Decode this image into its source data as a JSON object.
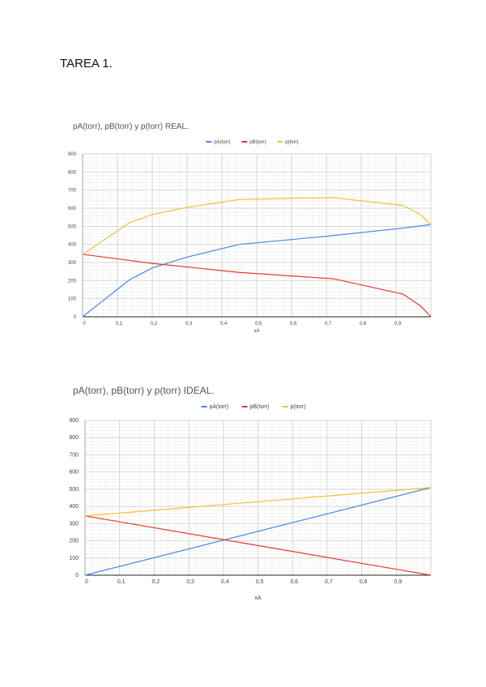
{
  "page": {
    "title": "TAREA 1."
  },
  "colors": {
    "pA": "#4a86e8",
    "pB": "#e53935",
    "p": "#f1c232",
    "grid_major": "#c8c8c8",
    "grid_minor": "#eeeeee",
    "axis": "#222222"
  },
  "chart_data": [
    {
      "type": "line",
      "title": "pA(torr), pB(torr) y p(torr) REAL.",
      "xlabel": "xA",
      "ylabel": "",
      "xlim": [
        0,
        1
      ],
      "ylim": [
        0,
        900
      ],
      "x_ticks": [
        "0",
        "0,1",
        "0,2",
        "0,3",
        "0,4",
        "0,5",
        "0,6",
        "0,7",
        "0,8",
        "0,9"
      ],
      "y_ticks": [
        "0",
        "100",
        "200",
        "300",
        "400",
        "500",
        "600",
        "700",
        "800",
        "900"
      ],
      "legend": "top-center",
      "grid": true,
      "series": [
        {
          "name": "pA(torr)",
          "color": "#4a86e8",
          "x": [
            0,
            0.135,
            0.2,
            0.3,
            0.45,
            0.7,
            0.92,
            1.0
          ],
          "y": [
            0,
            205,
            270,
            330,
            400,
            445,
            490,
            510
          ]
        },
        {
          "name": "pB(torr)",
          "color": "#e53935",
          "x": [
            0,
            0.2,
            0.45,
            0.72,
            0.92,
            0.97,
            1.0
          ],
          "y": [
            345,
            295,
            245,
            210,
            125,
            60,
            0
          ]
        },
        {
          "name": "p(torr)",
          "color": "#f1c232",
          "x": [
            0,
            0.135,
            0.2,
            0.3,
            0.45,
            0.6,
            0.72,
            0.92,
            0.97,
            1.0
          ],
          "y": [
            345,
            520,
            565,
            605,
            648,
            655,
            658,
            615,
            565,
            510
          ]
        }
      ]
    },
    {
      "type": "line",
      "title": "pA(torr), pB(torr) y p(torr) IDEAL.",
      "xlabel": "xA",
      "ylabel": "",
      "xlim": [
        0,
        1
      ],
      "ylim": [
        0,
        900
      ],
      "x_ticks": [
        "0",
        "0,1",
        "0,2",
        "0,3",
        "0,4",
        "0,5",
        "0,6",
        "0,7",
        "0,8",
        "0,9"
      ],
      "y_ticks": [
        "0",
        "100",
        "200",
        "300",
        "400",
        "500",
        "600",
        "700",
        "800",
        "900"
      ],
      "legend": "top-center",
      "grid": true,
      "series": [
        {
          "name": "pA(torr)",
          "color": "#4a86e8",
          "x": [
            0,
            1.0
          ],
          "y": [
            0,
            510
          ]
        },
        {
          "name": "pB(torr)",
          "color": "#e53935",
          "x": [
            0,
            1.0
          ],
          "y": [
            345,
            0
          ]
        },
        {
          "name": "p(torr)",
          "color": "#f1c232",
          "x": [
            0,
            1.0
          ],
          "y": [
            345,
            510
          ]
        }
      ]
    }
  ]
}
